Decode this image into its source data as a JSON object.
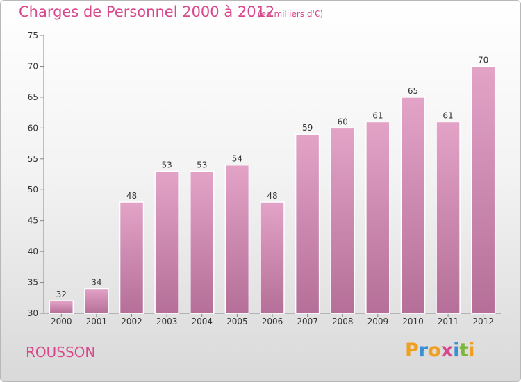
{
  "chart_data": {
    "type": "bar",
    "title": "Charges de Personnel 2000 à 2012",
    "subtitle": "(en milliers d'€)",
    "categories": [
      "2000",
      "2001",
      "2002",
      "2003",
      "2004",
      "2005",
      "2006",
      "2007",
      "2008",
      "2009",
      "2010",
      "2011",
      "2012"
    ],
    "values": [
      32,
      34,
      48,
      53,
      53,
      54,
      48,
      59,
      60,
      61,
      65,
      61,
      70
    ],
    "ylim": [
      30,
      75
    ],
    "yticks": [
      30,
      35,
      40,
      45,
      50,
      55,
      60,
      65,
      70,
      75
    ],
    "grid": false,
    "bar_color": "#e3a3c7",
    "bar_color_dark": "#b56f98",
    "xlabel": "",
    "ylabel": ""
  },
  "footer": {
    "town": "ROUSSON",
    "logo_letters": [
      "P",
      "r",
      "o",
      "x",
      "i",
      "t",
      "i"
    ],
    "logo_colors": [
      "#f0a020",
      "#3a8fd6",
      "#f0a020",
      "#d9478c",
      "#3a8fd6",
      "#7ab83a",
      "#f0a020"
    ]
  }
}
